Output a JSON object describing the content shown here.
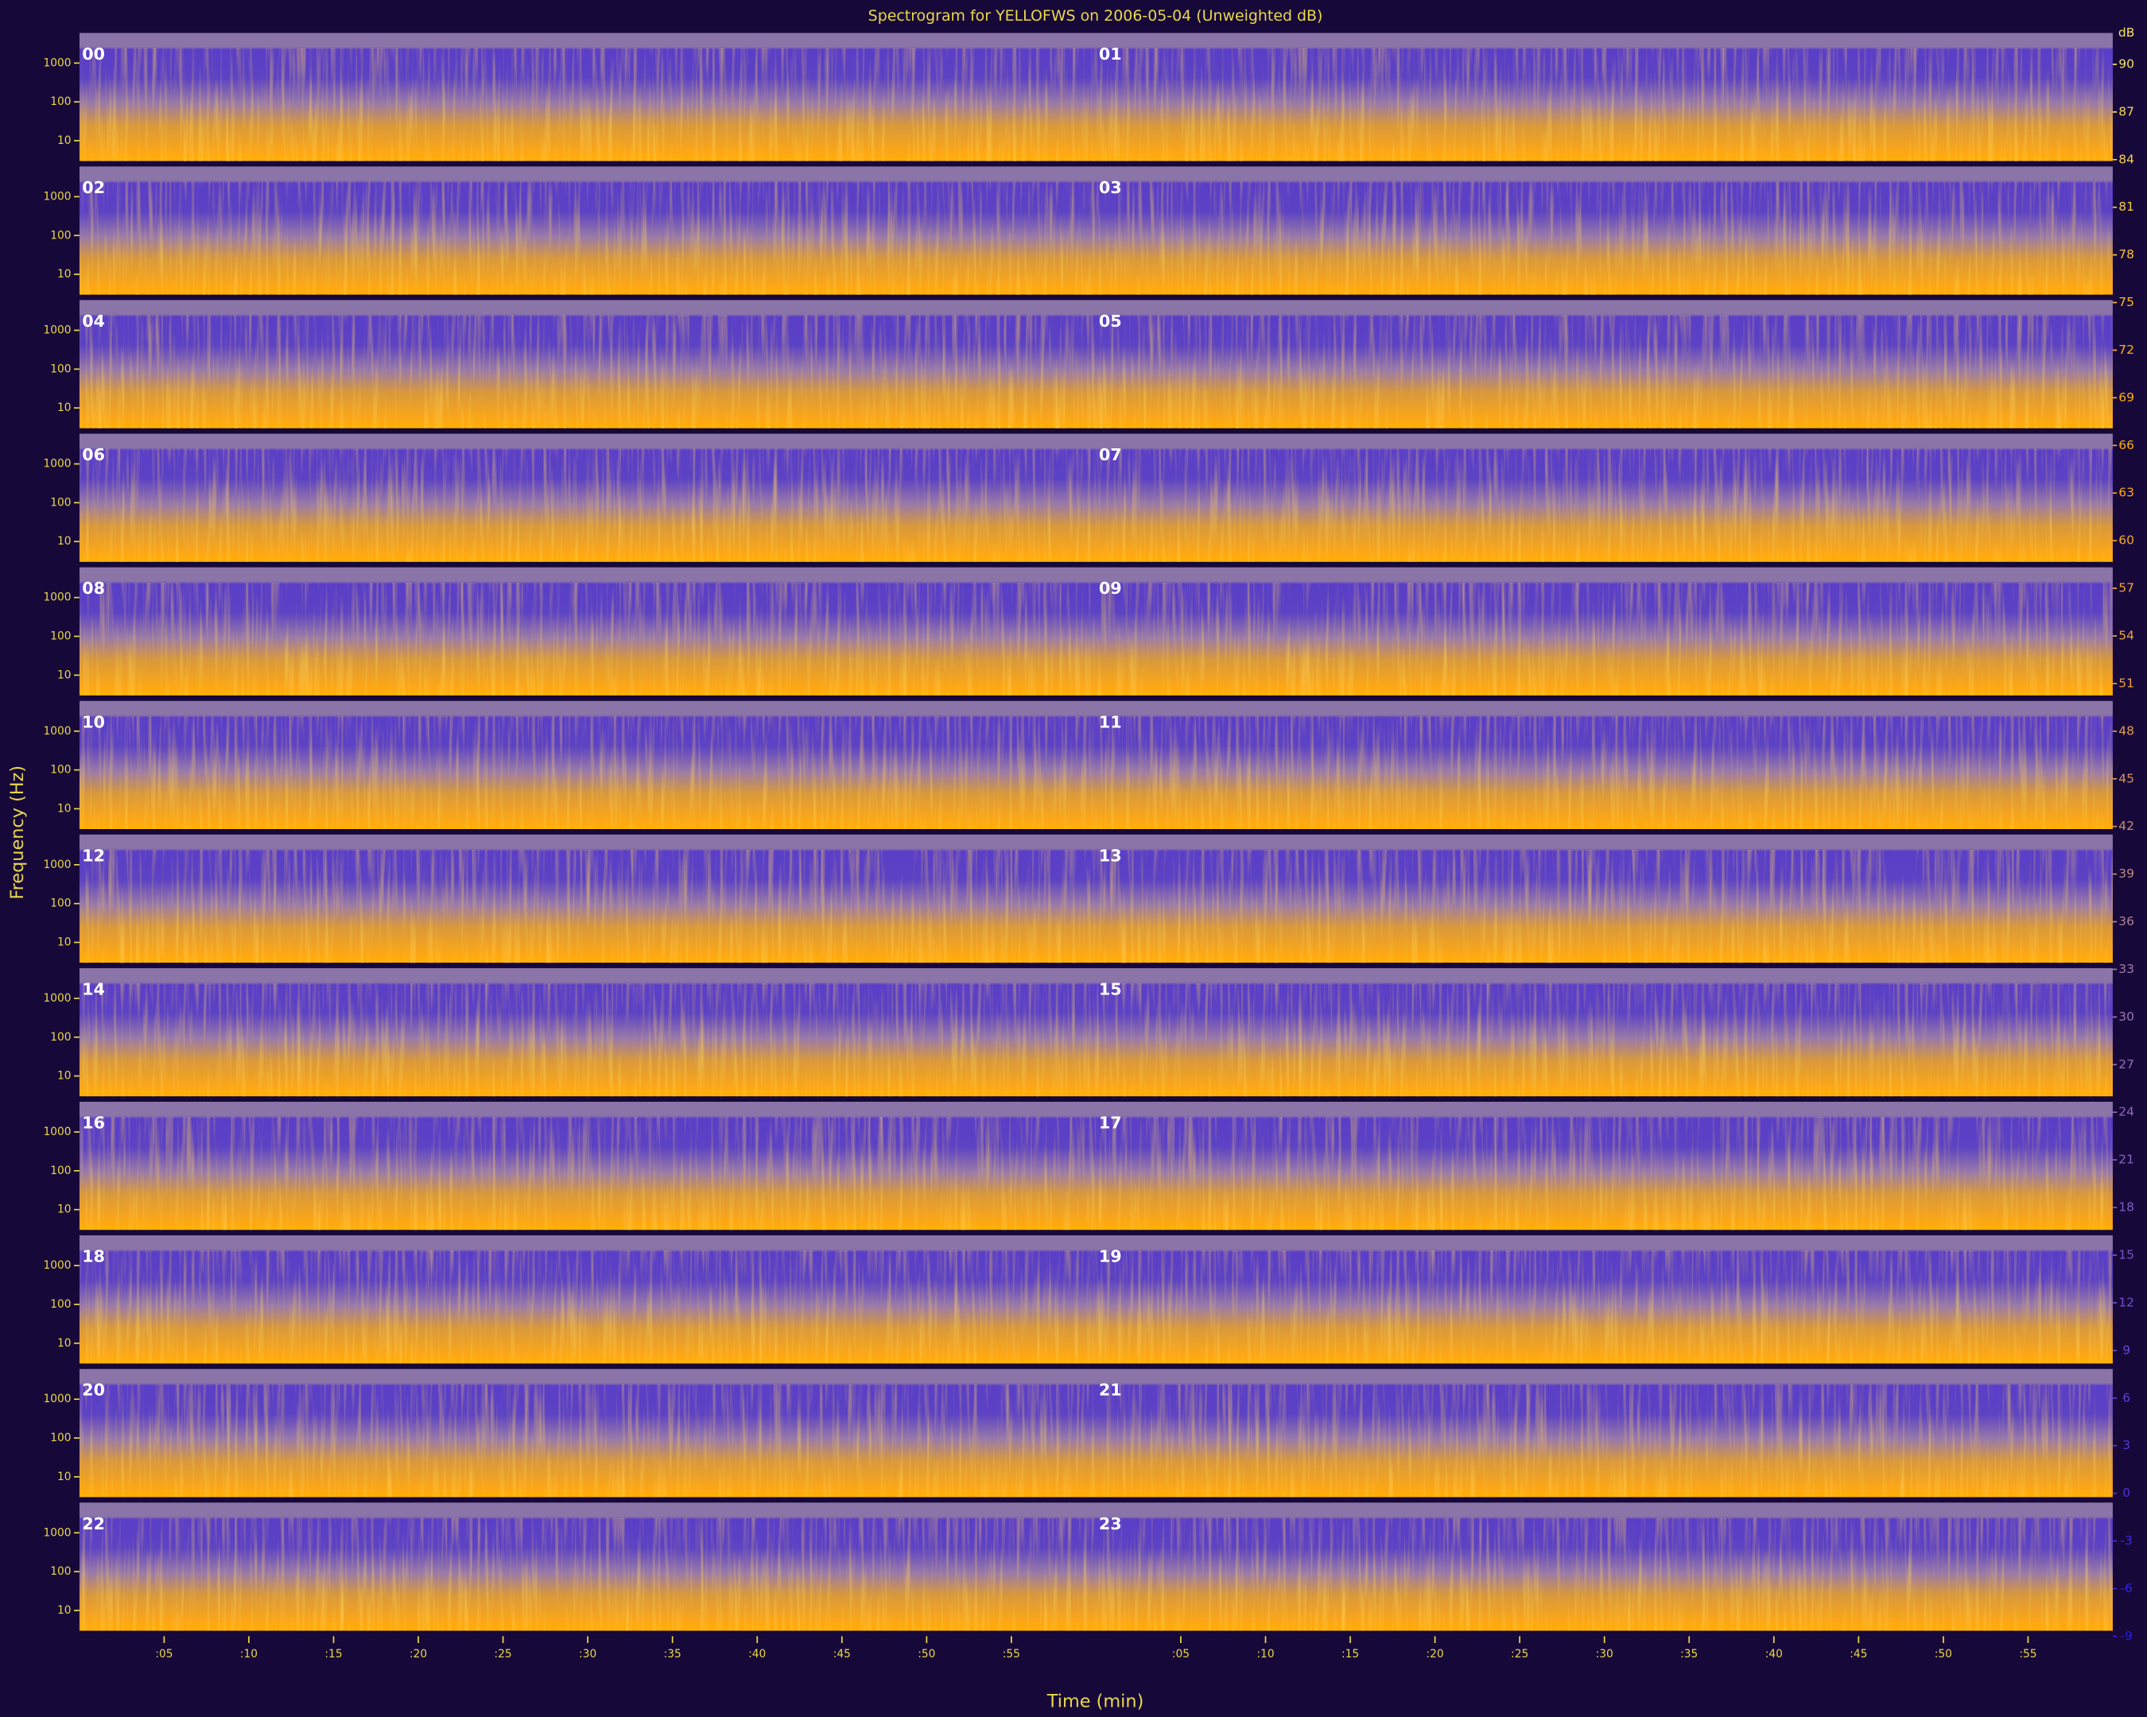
{
  "chart_data": {
    "type": "spectrogram",
    "title": "Spectrogram for YELLOFWS on 2006-05-04 (Unweighted dB)",
    "ylabel": "Frequency (Hz)",
    "xlabel": "Time (min)",
    "panels": [
      "00",
      "01",
      "02",
      "03",
      "04",
      "05",
      "06",
      "07",
      "08",
      "09",
      "10",
      "11",
      "12",
      "13",
      "14",
      "15",
      "16",
      "17",
      "18",
      "19",
      "20",
      "21",
      "22",
      "23"
    ],
    "ylim": [
      3,
      6000
    ],
    "yscale": "log",
    "yticks": [
      10,
      100,
      1000
    ],
    "xlim": [
      0,
      60
    ],
    "xticks": [
      {
        "value": 5,
        "label": ":05"
      },
      {
        "value": 10,
        "label": ":10"
      },
      {
        "value": 15,
        "label": ":15"
      },
      {
        "value": 20,
        "label": ":20"
      },
      {
        "value": 25,
        "label": ":25"
      },
      {
        "value": 30,
        "label": ":30"
      },
      {
        "value": 35,
        "label": ":35"
      },
      {
        "value": 40,
        "label": ":40"
      },
      {
        "value": 45,
        "label": ":45"
      },
      {
        "value": 50,
        "label": ":50"
      },
      {
        "value": 55,
        "label": ":55"
      }
    ],
    "colorbar_label": "dB",
    "zlim": [
      -9,
      90
    ],
    "zticks": [
      90,
      87,
      84,
      81,
      78,
      75,
      72,
      69,
      66,
      63,
      60,
      57,
      54,
      51,
      48,
      45,
      42,
      39,
      36,
      33,
      30,
      27,
      24,
      21,
      18,
      15,
      12,
      9,
      6,
      3,
      0,
      -3,
      -6,
      -9
    ],
    "colormap": [
      "#2a1ee8",
      "#6a4ed0",
      "#9a78b0",
      "#e8a040",
      "#ffae10",
      "#f0e060"
    ]
  }
}
